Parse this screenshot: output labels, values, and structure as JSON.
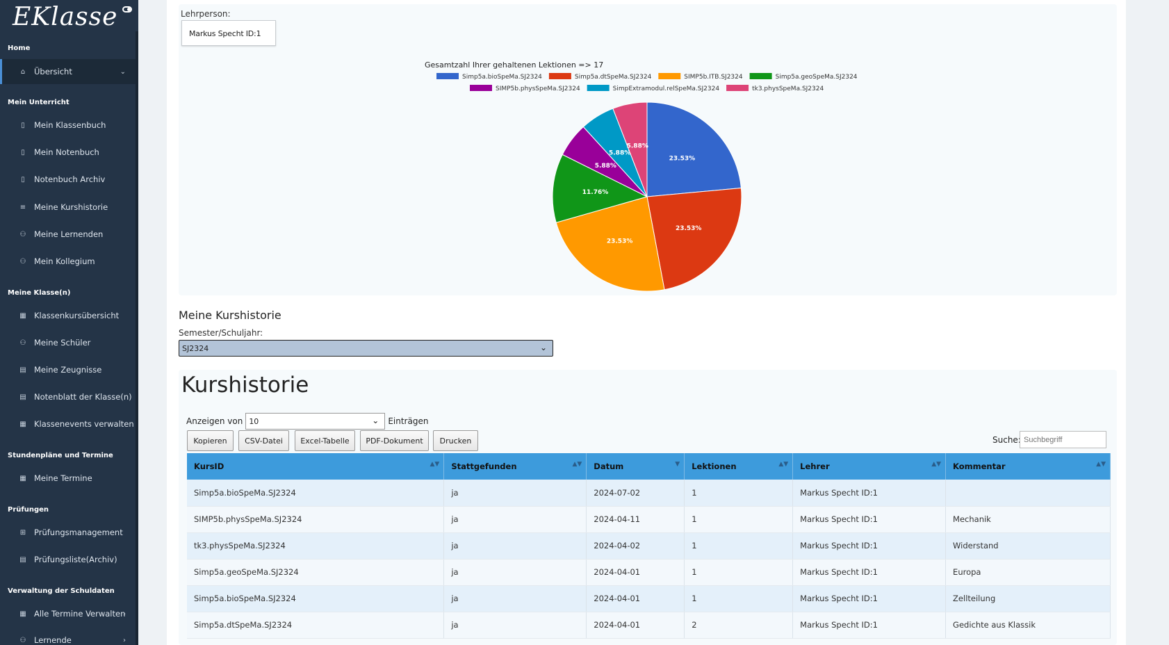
{
  "sidebar": {
    "logo": "EKlasse",
    "sections": [
      {
        "title": "Home"
      },
      {
        "title": "Mein Unterricht"
      },
      {
        "title": "Meine Klasse(n)"
      },
      {
        "title": "Stundenpläne und Termine"
      },
      {
        "title": "Prüfungen"
      },
      {
        "title": "Verwaltung der Schuldaten"
      }
    ],
    "items": [
      {
        "label": "Übersicht",
        "icon": "home-icon"
      },
      {
        "label": "Mein Klassenbuch",
        "icon": "book-icon"
      },
      {
        "label": "Mein Notenbuch",
        "icon": "book-icon"
      },
      {
        "label": "Notenbuch Archiv",
        "icon": "book-icon"
      },
      {
        "label": "Meine Kurshistorie",
        "icon": "list-icon"
      },
      {
        "label": "Meine Lernenden",
        "icon": "users-icon"
      },
      {
        "label": "Mein Kollegium",
        "icon": "users-icon"
      },
      {
        "label": "Klassenkursübersicht",
        "icon": "calendar-icon"
      },
      {
        "label": "Meine Schüler",
        "icon": "users-icon"
      },
      {
        "label": "Meine Zeugnisse",
        "icon": "document-icon"
      },
      {
        "label": "Notenblatt der Klasse(n)",
        "icon": "document-icon"
      },
      {
        "label": "Klassenevents verwalten",
        "icon": "calendar-icon"
      },
      {
        "label": "Meine Termine",
        "icon": "calendar-icon"
      },
      {
        "label": "Prüfungsmanagement",
        "icon": "grid-icon"
      },
      {
        "label": "Prüfungsliste(Archiv)",
        "icon": "document-icon"
      },
      {
        "label": "Alle Termine Verwalten",
        "icon": "calendar-icon"
      },
      {
        "label": "Lernende",
        "icon": "users-icon"
      }
    ]
  },
  "teacher": {
    "label": "Lehrperson:",
    "value": "Markus Specht ID:1"
  },
  "chart_data": {
    "type": "pie",
    "title": "Gesamtzahl Ihrer gehaltenen Lektionen => 17",
    "legend_position": "top",
    "categories": [
      "Simp5a.bioSpeMa.SJ2324",
      "Simp5a.dtSpeMa.SJ2324",
      "SIMP5b.ITB.SJ2324",
      "Simp5a.geoSpeMa.SJ2324",
      "SIMP5b.physSpeMa.SJ2324",
      "SimpExtramodul.relSpeMa.SJ2324",
      "tk3.physSpeMa.SJ2324"
    ],
    "values": [
      4,
      4,
      4,
      2,
      1,
      1,
      1
    ],
    "labels": [
      "23.53%",
      "23.53%",
      "23.53%",
      "11.76%",
      "5.88%",
      "5.88%",
      "5.88%"
    ],
    "colors": [
      "#3366cc",
      "#dc3912",
      "#ff9900",
      "#109618",
      "#990099",
      "#0099c6",
      "#dd4477"
    ]
  },
  "history": {
    "title": "Meine Kurshistorie",
    "semester_label": "Semester/Schuljahr:",
    "semester_value": "SJ2324"
  },
  "table_section": {
    "heading": "Kurshistorie",
    "show_prefix": "Anzeigen von",
    "show_value": "10",
    "show_suffix": "Einträgen",
    "buttons": [
      "Kopieren",
      "CSV-Datei",
      "Excel-Tabelle",
      "PDF-Dokument",
      "Drucken"
    ],
    "search_label": "Suche:",
    "search_placeholder": "Suchbegriff",
    "columns": [
      "KursID",
      "Stattgefunden",
      "Datum",
      "Lektionen",
      "Lehrer",
      "Kommentar"
    ],
    "rows": [
      [
        "Simp5a.bioSpeMa.SJ2324",
        "ja",
        "2024-07-02",
        "1",
        "Markus Specht ID:1",
        ""
      ],
      [
        "SIMP5b.physSpeMa.SJ2324",
        "ja",
        "2024-04-11",
        "1",
        "Markus Specht ID:1",
        "Mechanik"
      ],
      [
        "tk3.physSpeMa.SJ2324",
        "ja",
        "2024-04-02",
        "1",
        "Markus Specht ID:1",
        "Widerstand"
      ],
      [
        "Simp5a.geoSpeMa.SJ2324",
        "ja",
        "2024-04-01",
        "1",
        "Markus Specht ID:1",
        "Europa"
      ],
      [
        "Simp5a.bioSpeMa.SJ2324",
        "ja",
        "2024-04-01",
        "1",
        "Markus Specht ID:1",
        "Zellteilung"
      ],
      [
        "Simp5a.dtSpeMa.SJ2324",
        "ja",
        "2024-04-01",
        "2",
        "Markus Specht ID:1",
        "Gedichte aus Klassik"
      ]
    ]
  }
}
